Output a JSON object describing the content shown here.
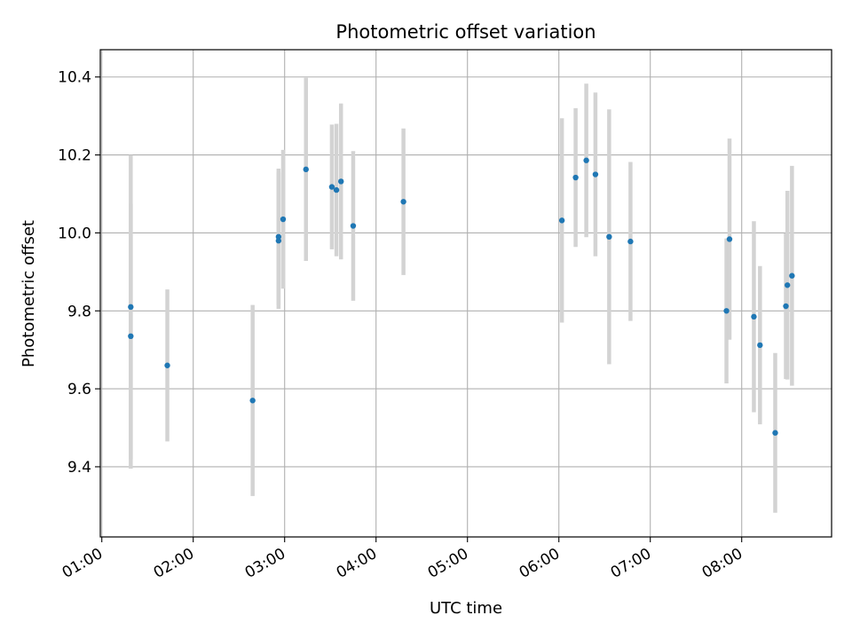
{
  "chart_data": {
    "type": "scatter",
    "title": "Photometric offset variation",
    "xlabel": "UTC time",
    "ylabel": "Photometric offset",
    "x_tick_labels": [
      "01:00",
      "02:00",
      "03:00",
      "04:00",
      "05:00",
      "06:00",
      "07:00",
      "08:00"
    ],
    "y_tick_labels": [
      "9.4",
      "9.6",
      "9.8",
      "10.0",
      "10.2",
      "10.4"
    ],
    "y_ticks": [
      9.4,
      9.6,
      9.8,
      10.0,
      10.2,
      10.4
    ],
    "xlim": [
      "00:59",
      "08:59"
    ],
    "ylim": [
      9.22,
      10.47
    ],
    "grid": true,
    "colors": {
      "points": "#1f77b4",
      "errorbars": "#d3d3d3",
      "grid": "#b0b0b0"
    },
    "points": [
      {
        "x": "01:19",
        "y": 9.81,
        "err": 0.39
      },
      {
        "x": "01:19",
        "y": 9.735,
        "err": 0.34
      },
      {
        "x": "01:43",
        "y": 9.66,
        "err": 0.195
      },
      {
        "x": "02:39",
        "y": 9.57,
        "err": 0.245
      },
      {
        "x": "02:56",
        "y": 9.98,
        "err": 0.175
      },
      {
        "x": "02:56",
        "y": 9.99,
        "err": 0.175
      },
      {
        "x": "02:59",
        "y": 10.035,
        "err": 0.178
      },
      {
        "x": "03:14",
        "y": 10.163,
        "err": 0.235
      },
      {
        "x": "03:31",
        "y": 10.118,
        "err": 0.16
      },
      {
        "x": "03:34",
        "y": 10.11,
        "err": 0.17
      },
      {
        "x": "03:37",
        "y": 10.132,
        "err": 0.2
      },
      {
        "x": "03:45",
        "y": 10.018,
        "err": 0.192
      },
      {
        "x": "04:18",
        "y": 10.08,
        "err": 0.188
      },
      {
        "x": "06:02",
        "y": 10.032,
        "err": 0.262
      },
      {
        "x": "06:11",
        "y": 10.142,
        "err": 0.178
      },
      {
        "x": "06:18",
        "y": 10.186,
        "err": 0.197
      },
      {
        "x": "06:24",
        "y": 10.15,
        "err": 0.21
      },
      {
        "x": "06:33",
        "y": 9.99,
        "err": 0.327
      },
      {
        "x": "06:47",
        "y": 9.978,
        "err": 0.204
      },
      {
        "x": "07:50",
        "y": 9.8,
        "err": 0.186
      },
      {
        "x": "07:52",
        "y": 9.984,
        "err": 0.258
      },
      {
        "x": "08:08",
        "y": 9.785,
        "err": 0.245
      },
      {
        "x": "08:12",
        "y": 9.712,
        "err": 0.203
      },
      {
        "x": "08:22",
        "y": 9.487,
        "err": 0.205
      },
      {
        "x": "08:29",
        "y": 9.812,
        "err": 0.187
      },
      {
        "x": "08:30",
        "y": 9.866,
        "err": 0.242
      },
      {
        "x": "08:33",
        "y": 9.89,
        "err": 0.282
      }
    ]
  }
}
